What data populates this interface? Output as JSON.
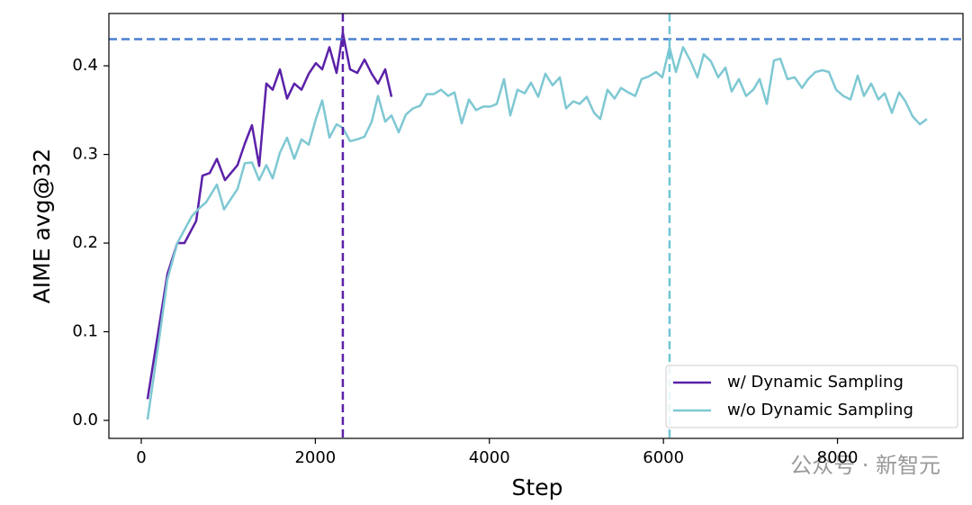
{
  "chart_data": {
    "type": "line",
    "xlabel": "Step",
    "ylabel": "AIME avg@32",
    "xlim": [
      -372,
      9442
    ],
    "ylim": [
      -0.0203,
      0.459
    ],
    "xticks": [
      0,
      2000,
      4000,
      6000,
      8000
    ],
    "yticks": [
      {
        "value": 0,
        "label": "0.0"
      },
      0.1,
      0.2,
      0.3,
      0.4
    ],
    "legend": "lower right",
    "reference_lines": [
      {
        "axis": "y",
        "value": 0.43,
        "color": "#4a7fd0"
      },
      {
        "axis": "x",
        "value": 2316,
        "color": "#5b21a8"
      },
      {
        "axis": "x",
        "value": 6070,
        "color": "#6fc6d4"
      }
    ],
    "series": [
      {
        "name": "w/ Dynamic Sampling",
        "color": "#5b21a8",
        "x": [
          72,
          300,
          414,
          496,
          631,
          703,
          786,
          869,
          962,
          1106,
          1189,
          1272,
          1355,
          1437,
          1510,
          1593,
          1675,
          1758,
          1841,
          1924,
          2006,
          2079,
          2162,
          2244,
          2316,
          2399,
          2482,
          2565,
          2648,
          2720,
          2803,
          2875
        ],
        "values": [
          0.024,
          0.165,
          0.2,
          0.2,
          0.225,
          0.276,
          0.279,
          0.295,
          0.271,
          0.288,
          0.312,
          0.333,
          0.287,
          0.38,
          0.373,
          0.396,
          0.363,
          0.38,
          0.373,
          0.391,
          0.403,
          0.396,
          0.421,
          0.392,
          0.437,
          0.396,
          0.392,
          0.407,
          0.391,
          0.38,
          0.396,
          0.365
        ]
      },
      {
        "name": "w/o Dynamic Sampling",
        "color": "#7ec8d3",
        "x": [
          72,
          207,
          300,
          414,
          496,
          579,
          662,
          745,
          869,
          951,
          1024,
          1106,
          1189,
          1272,
          1355,
          1437,
          1510,
          1593,
          1675,
          1758,
          1841,
          1924,
          2006,
          2079,
          2162,
          2244,
          2316,
          2399,
          2482,
          2565,
          2648,
          2720,
          2803,
          2875,
          2958,
          3040,
          3123,
          3206,
          3279,
          3361,
          3444,
          3527,
          3599,
          3682,
          3765,
          3847,
          3930,
          4013,
          4085,
          4168,
          4240,
          4323,
          4406,
          4478,
          4561,
          4643,
          4726,
          4809,
          4881,
          4964,
          5036,
          5119,
          5202,
          5274,
          5357,
          5439,
          5512,
          5594,
          5677,
          5749,
          5832,
          5915,
          5987,
          6070,
          6143,
          6226,
          6308,
          6391,
          6463,
          6546,
          6629,
          6712,
          6784,
          6867,
          6950,
          7032,
          7105,
          7188,
          7270,
          7343,
          7425,
          7508,
          7591,
          7663,
          7746,
          7829,
          7901,
          7984,
          8067,
          8149,
          8232,
          8304,
          8387,
          8470,
          8542,
          8625,
          8708,
          8780,
          8863,
          8946,
          9028
        ],
        "values": [
          0.001,
          0.093,
          0.159,
          0.2,
          0.215,
          0.23,
          0.239,
          0.246,
          0.266,
          0.238,
          0.249,
          0.261,
          0.29,
          0.291,
          0.271,
          0.288,
          0.273,
          0.302,
          0.319,
          0.295,
          0.317,
          0.311,
          0.34,
          0.361,
          0.319,
          0.334,
          0.33,
          0.315,
          0.317,
          0.32,
          0.337,
          0.366,
          0.337,
          0.344,
          0.325,
          0.345,
          0.352,
          0.355,
          0.368,
          0.368,
          0.373,
          0.366,
          0.37,
          0.335,
          0.362,
          0.35,
          0.354,
          0.354,
          0.357,
          0.385,
          0.344,
          0.373,
          0.369,
          0.381,
          0.365,
          0.391,
          0.378,
          0.387,
          0.352,
          0.36,
          0.357,
          0.365,
          0.347,
          0.34,
          0.373,
          0.363,
          0.375,
          0.37,
          0.366,
          0.385,
          0.388,
          0.393,
          0.387,
          0.421,
          0.393,
          0.421,
          0.406,
          0.387,
          0.413,
          0.405,
          0.387,
          0.398,
          0.371,
          0.385,
          0.366,
          0.373,
          0.385,
          0.357,
          0.406,
          0.408,
          0.385,
          0.387,
          0.375,
          0.385,
          0.393,
          0.395,
          0.393,
          0.373,
          0.366,
          0.362,
          0.389,
          0.366,
          0.38,
          0.362,
          0.369,
          0.347,
          0.37,
          0.36,
          0.343,
          0.334,
          0.34
        ]
      }
    ]
  },
  "watermark": "公众号 · 新智元"
}
